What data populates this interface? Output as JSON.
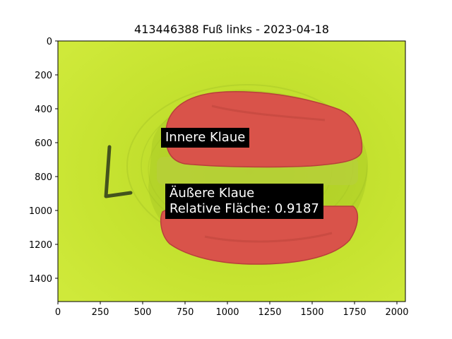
{
  "title": "413446388 Fuß links - 2023-04-18",
  "annotations": {
    "inner": "Innere Klaue",
    "outer_line1": "Äußere Klaue",
    "outer_line2": "Relative Fläche: 0.9187"
  },
  "axes": {
    "x_ticks": [
      "0",
      "250",
      "500",
      "750",
      "1000",
      "1250",
      "1500",
      "1750",
      "2000"
    ],
    "y_ticks": [
      "0",
      "200",
      "400",
      "600",
      "800",
      "1000",
      "1200",
      "1400"
    ]
  },
  "colors": {
    "background_mat": "#c4e12e",
    "claw_overlay": "#d9534a",
    "label_bg": "#000000",
    "label_text": "#ffffff"
  }
}
